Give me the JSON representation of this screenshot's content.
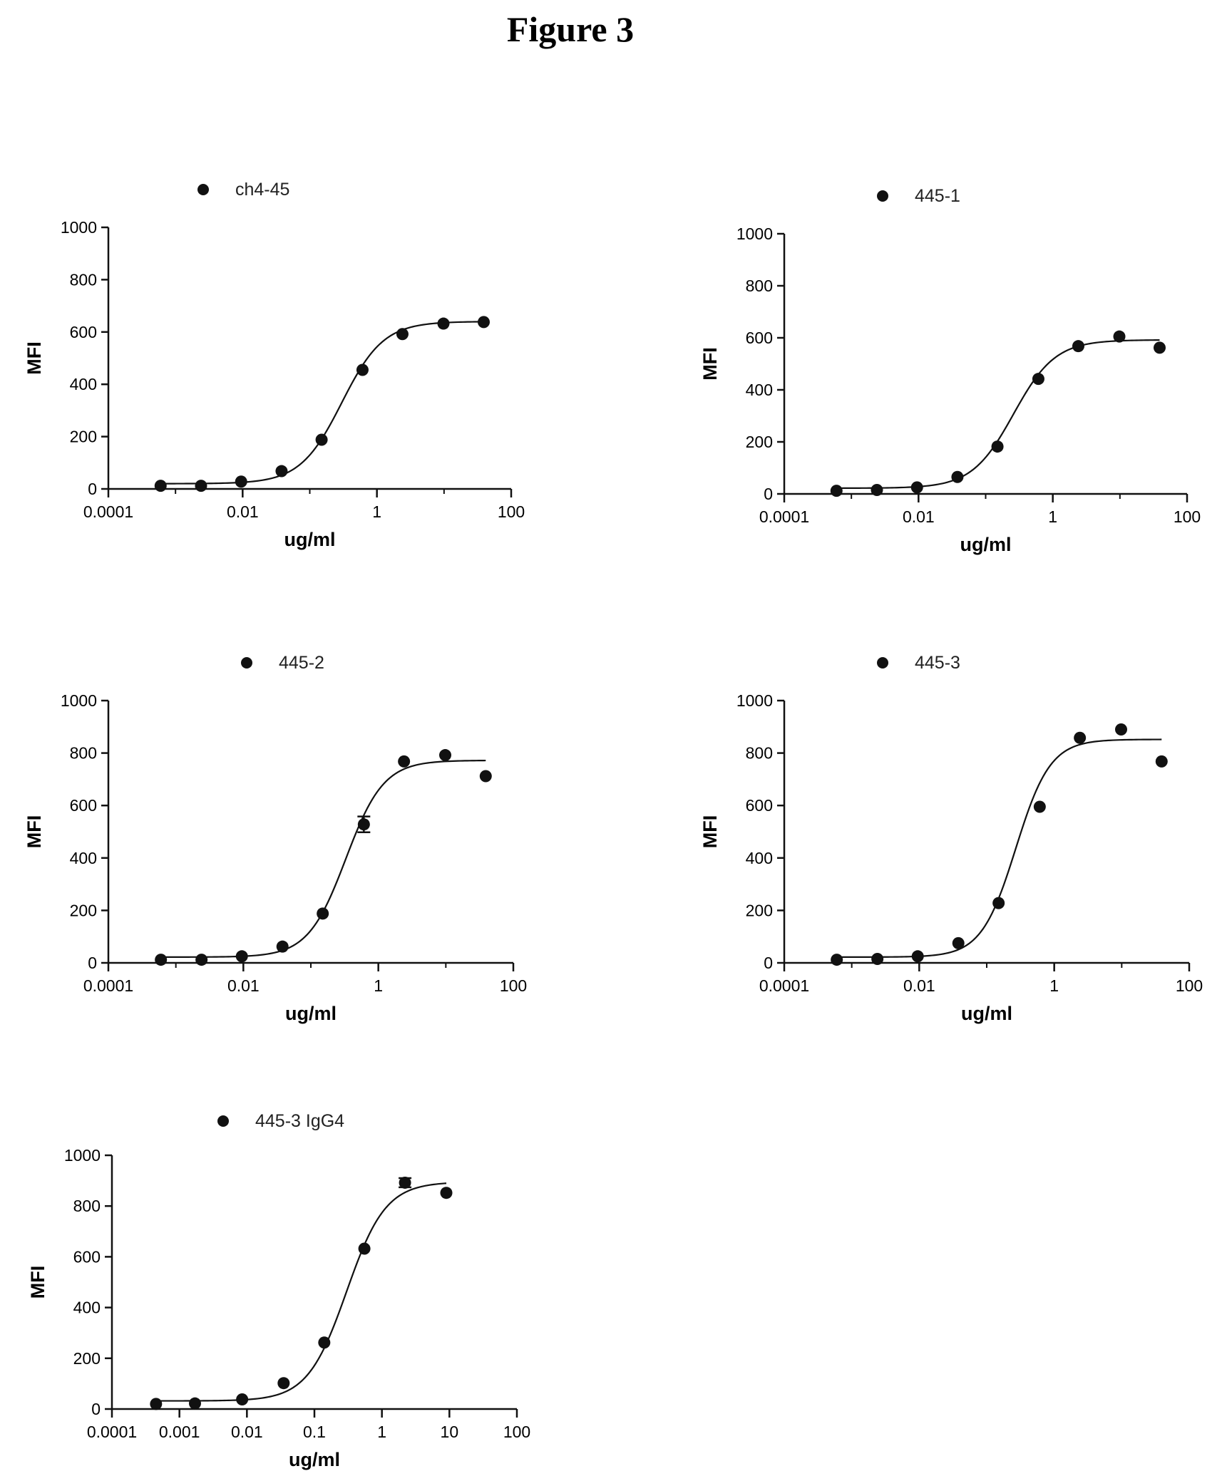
{
  "figure_title": "Figure 3",
  "colors": {
    "marker": "#111111",
    "line": "#111111",
    "axis": "#111111"
  },
  "chart_data": [
    {
      "type": "scatter",
      "legend": "ch4-45",
      "xlabel": "ug/ml",
      "ylabel": "MFI",
      "xscale": "log",
      "xlim": [
        0.0001,
        100
      ],
      "ylim": [
        0,
        1000
      ],
      "xticks": [
        "0.0001",
        "0.01",
        "1",
        "100"
      ],
      "yticks": [
        "0",
        "200",
        "400",
        "600",
        "800",
        "1000"
      ],
      "x": [
        0.0006,
        0.0024,
        0.0095,
        0.038,
        0.15,
        0.61,
        2.4,
        9.8,
        39
      ],
      "y": [
        12,
        12,
        28,
        68,
        188,
        455,
        592,
        632,
        638
      ],
      "fit": {
        "bottom": 20,
        "top": 640,
        "ec50": 0.3,
        "hill": 1.4
      }
    },
    {
      "type": "scatter",
      "legend": "445-1",
      "xlabel": "ug/ml",
      "ylabel": "MFI",
      "xscale": "log",
      "xlim": [
        0.0001,
        100
      ],
      "ylim": [
        0,
        1000
      ],
      "xticks": [
        "0.0001",
        "0.01",
        "1",
        "100"
      ],
      "yticks": [
        "0",
        "200",
        "400",
        "600",
        "800",
        "1000"
      ],
      "x": [
        0.0006,
        0.0024,
        0.0095,
        0.038,
        0.15,
        0.61,
        2.4,
        9.8,
        39
      ],
      "y": [
        12,
        15,
        25,
        65,
        182,
        442,
        568,
        605,
        562
      ],
      "fit": {
        "bottom": 22,
        "top": 592,
        "ec50": 0.26,
        "hill": 1.4
      }
    },
    {
      "type": "scatter",
      "legend": "445-2",
      "xlabel": "ug/ml",
      "ylabel": "MFI",
      "xscale": "log",
      "xlim": [
        0.0001,
        100
      ],
      "ylim": [
        0,
        1000
      ],
      "xticks": [
        "0.0001",
        "0.01",
        "1",
        "100"
      ],
      "yticks": [
        "0",
        "200",
        "400",
        "600",
        "800",
        "1000"
      ],
      "x": [
        0.0006,
        0.0024,
        0.0095,
        0.038,
        0.15,
        0.61,
        2.4,
        9.8,
        39
      ],
      "y": [
        12,
        12,
        25,
        62,
        188,
        528,
        768,
        792,
        712
      ],
      "err": [
        0,
        0,
        0,
        0,
        0,
        30,
        0,
        0,
        0
      ],
      "fit": {
        "bottom": 22,
        "top": 772,
        "ec50": 0.33,
        "hill": 1.55
      }
    },
    {
      "type": "scatter",
      "legend": "445-3",
      "xlabel": "ug/ml",
      "ylabel": "MFI",
      "xscale": "log",
      "xlim": [
        0.0001,
        100
      ],
      "ylim": [
        0,
        1000
      ],
      "xticks": [
        "0.0001",
        "0.01",
        "1",
        "100"
      ],
      "yticks": [
        "0",
        "200",
        "400",
        "600",
        "800",
        "1000"
      ],
      "x": [
        0.0006,
        0.0024,
        0.0095,
        0.038,
        0.15,
        0.61,
        2.4,
        9.8,
        39
      ],
      "y": [
        12,
        15,
        25,
        75,
        228,
        595,
        858,
        890,
        768
      ],
      "fit": {
        "bottom": 22,
        "top": 852,
        "ec50": 0.27,
        "hill": 1.7
      }
    },
    {
      "type": "scatter",
      "legend": "445-3 IgG4",
      "xlabel": "ug/ml",
      "ylabel": "MFI",
      "xscale": "log",
      "xlim": [
        0.0001,
        100
      ],
      "ylim": [
        0,
        1000
      ],
      "xticks": [
        "0.0001",
        "0.001",
        "0.01",
        "0.1",
        "1",
        "10",
        "100"
      ],
      "yticks": [
        "0",
        "200",
        "400",
        "600",
        "800",
        "1000"
      ],
      "x": [
        0.00045,
        0.0017,
        0.0085,
        0.035,
        0.14,
        0.55,
        2.2,
        9
      ],
      "y": [
        20,
        22,
        38,
        102,
        262,
        632,
        892,
        852
      ],
      "err": [
        0,
        0,
        0,
        0,
        0,
        0,
        18,
        0
      ],
      "fit": {
        "bottom": 32,
        "top": 895,
        "ec50": 0.3,
        "hill": 1.5
      }
    }
  ]
}
